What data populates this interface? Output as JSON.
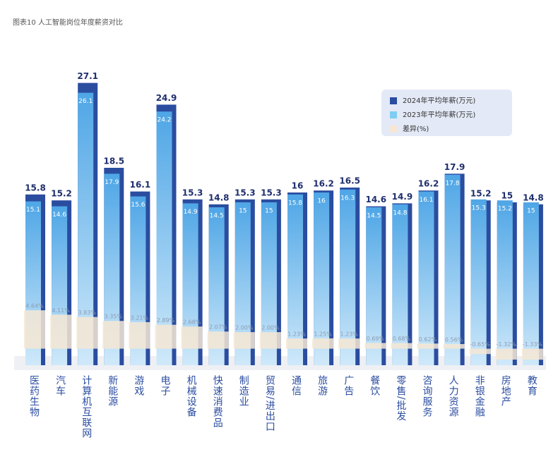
{
  "chart_data": {
    "type": "bar",
    "title": "图表10 人工智能岗位年度薪资对比",
    "categories": [
      "医药生物",
      "汽车",
      "计算机互联网",
      "新能源",
      "游戏",
      "电子",
      "机械设备",
      "快速消费品",
      "制造业",
      "贸易/进出口",
      "通信",
      "旅游",
      "广告",
      "餐饮",
      "零售/批发",
      "咨询服务",
      "人力资源",
      "非银金融",
      "房地产",
      "教育"
    ],
    "ylim": [
      -1.5,
      28
    ],
    "y2lim": [
      -2,
      5.5
    ],
    "legend": "upper right",
    "series": [
      {
        "name": "2024年平均年薪(万元)",
        "color": "#2b4da0",
        "values": [
          15.8,
          15.2,
          27.1,
          18.5,
          16.1,
          24.9,
          15.3,
          14.8,
          15.3,
          15.3,
          16,
          16.2,
          16.5,
          14.6,
          14.9,
          16.2,
          17.9,
          15.2,
          15,
          14.8
        ]
      },
      {
        "name": "2023年平均年薪(万元)",
        "color": "#7fcdf2",
        "values": [
          15.1,
          14.6,
          26.1,
          17.9,
          15.6,
          24.2,
          14.9,
          14.5,
          15,
          15,
          15.8,
          16,
          16.3,
          14.5,
          14.8,
          16.1,
          17.8,
          15.3,
          15.2,
          15
        ]
      },
      {
        "name": "差异(%)",
        "color": "#f6e7d4",
        "axis": "y2",
        "values": [
          4.64,
          4.11,
          3.83,
          3.35,
          3.21,
          2.89,
          2.68,
          2.07,
          2.0,
          2.0,
          1.23,
          1.25,
          1.23,
          0.69,
          0.68,
          0.62,
          0.56,
          -0.65,
          -1.32,
          -1.33
        ],
        "value_labels": [
          "4.64%",
          "4.11%",
          "3.83%",
          "3.35%",
          "3.21%",
          "2.89%",
          "2.68%",
          "2.07%",
          "2.00%",
          "2.00%",
          "1.23%",
          "1.25%",
          "1.23%",
          "0.69%",
          "0.68%",
          "0.62%",
          "0.56%",
          "-0.65%",
          "-1.32%",
          "-1.33%"
        ]
      }
    ]
  }
}
